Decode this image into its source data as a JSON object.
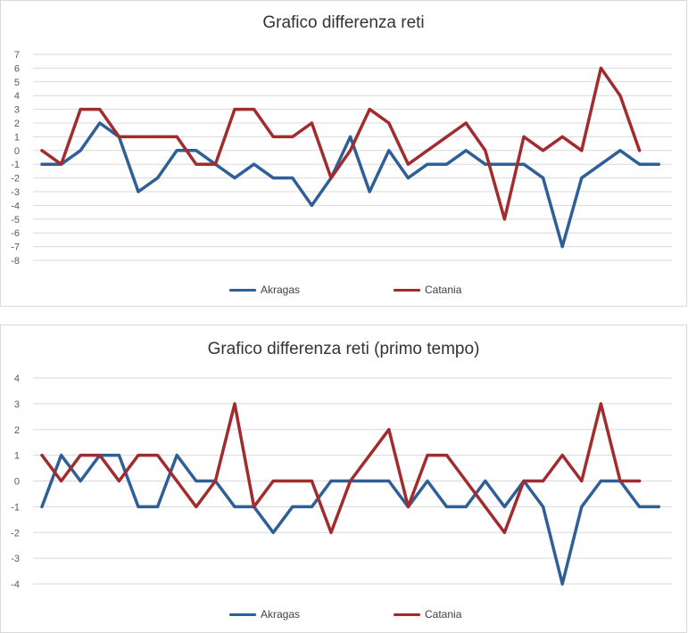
{
  "colors": {
    "akragas": "#2e5f96",
    "catania": "#a22b2e",
    "grid": "#d9d9d9"
  },
  "chart_data": [
    {
      "type": "line",
      "title": "Grafico differenza reti",
      "xlabel": "",
      "ylabel": "",
      "ylim": [
        -8,
        7
      ],
      "yticks": [
        7,
        6,
        5,
        4,
        3,
        2,
        1,
        0,
        -1,
        -2,
        -3,
        -4,
        -5,
        -6,
        -7,
        -8
      ],
      "grid": true,
      "legend_position": "bottom",
      "series": [
        {
          "name": "Akragas",
          "color": "#2e5f96",
          "values": [
            -1,
            -1,
            0,
            2,
            1,
            -3,
            -2,
            0,
            0,
            -1,
            -2,
            -1,
            -2,
            -2,
            -4,
            -2,
            1,
            -3,
            0,
            -2,
            -1,
            -1,
            0,
            -1,
            -1,
            -1,
            -2,
            -7,
            -2,
            -1,
            0,
            -1,
            -1
          ]
        },
        {
          "name": "Catania",
          "color": "#a22b2e",
          "values": [
            0,
            -1,
            3,
            3,
            1,
            1,
            1,
            1,
            -1,
            -1,
            3,
            3,
            1,
            1,
            2,
            -2,
            0,
            3,
            2,
            -1,
            0,
            1,
            2,
            0,
            -5,
            1,
            0,
            1,
            0,
            6,
            4,
            0
          ]
        }
      ]
    },
    {
      "type": "line",
      "title": "Grafico differenza reti (primo tempo)",
      "xlabel": "",
      "ylabel": "",
      "ylim": [
        -4,
        4
      ],
      "yticks": [
        4,
        3,
        2,
        1,
        0,
        -1,
        -2,
        -3,
        -4
      ],
      "grid": true,
      "legend_position": "bottom",
      "series": [
        {
          "name": "Akragas",
          "color": "#2e5f96",
          "values": [
            -1,
            1,
            0,
            1,
            1,
            -1,
            -1,
            1,
            0,
            0,
            -1,
            -1,
            -2,
            -1,
            -1,
            0,
            0,
            0,
            0,
            -1,
            0,
            -1,
            -1,
            0,
            -1,
            0,
            -1,
            -4,
            -1,
            0,
            0,
            -1,
            -1
          ]
        },
        {
          "name": "Catania",
          "color": "#a22b2e",
          "values": [
            1,
            0,
            1,
            1,
            0,
            1,
            1,
            0,
            -1,
            0,
            3,
            -1,
            0,
            0,
            0,
            -2,
            0,
            1,
            2,
            -1,
            1,
            1,
            0,
            -1,
            -2,
            0,
            0,
            1,
            0,
            3,
            0,
            0
          ]
        }
      ]
    }
  ]
}
